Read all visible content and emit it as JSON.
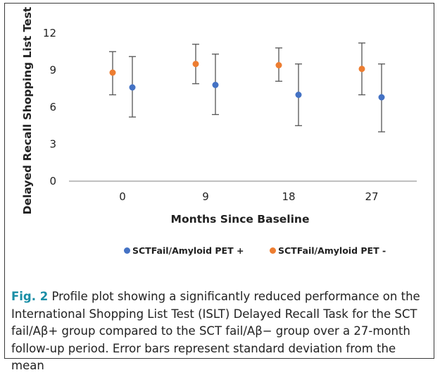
{
  "chart_data": {
    "type": "scatter",
    "xlabel": "Months Since Baseline",
    "ylabel": "Delayed Recall Shopping List Test",
    "categories": [
      "0",
      "9",
      "18",
      "27"
    ],
    "ylim": [
      0,
      12
    ],
    "yticks": [
      "0",
      "3",
      "6",
      "9",
      "12"
    ],
    "grid": false,
    "legend_position": "bottom",
    "series": [
      {
        "name": "SCTFail/Amyloid PET +",
        "color": "#4472c4",
        "values": [
          7.6,
          7.8,
          7.0,
          6.8
        ],
        "error_low": [
          5.2,
          5.4,
          4.5,
          4.0
        ],
        "error_high": [
          10.1,
          10.3,
          9.5,
          9.5
        ]
      },
      {
        "name": "SCTFail/Amyloid PET -",
        "color": "#ed7d31",
        "values": [
          8.8,
          9.5,
          9.4,
          9.1
        ],
        "error_low": [
          7.0,
          7.9,
          8.1,
          7.0
        ],
        "error_high": [
          10.5,
          11.1,
          10.8,
          11.2
        ]
      }
    ]
  },
  "caption": {
    "label": "Fig. 2",
    "text": " Profile plot showing a significantly reduced performance on the International Shopping List Test (ISLT) Delayed Recall Task for the SCT fail/Aβ+ group compared to the SCT fail/Aβ− group over a 27-month follow-up period. Error bars represent standard deviation from the mean"
  }
}
